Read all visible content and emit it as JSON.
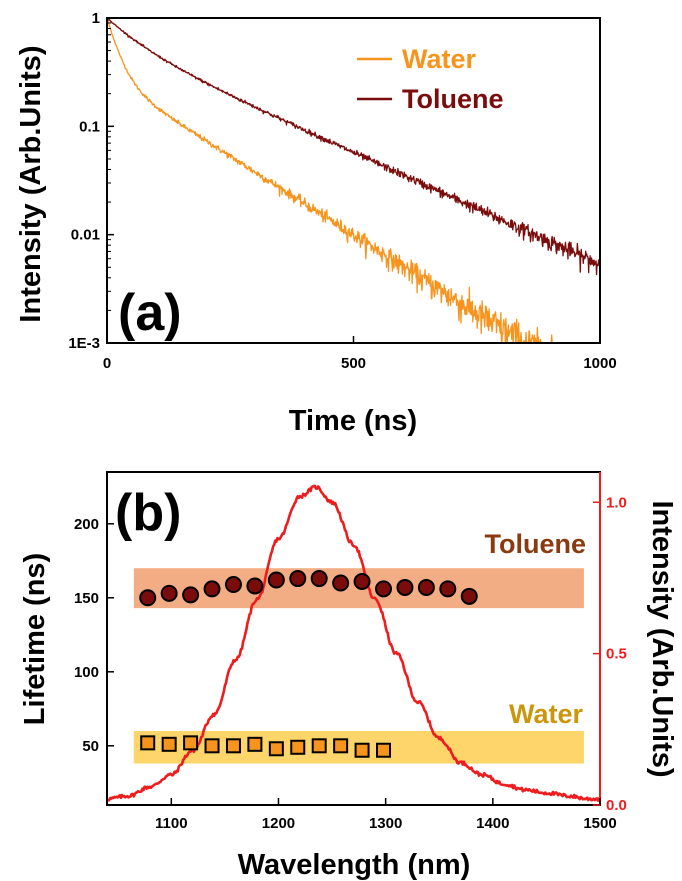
{
  "chart_data": [
    {
      "type": "line",
      "panel_label": "(a)",
      "xlabel": "Time (ns)",
      "ylabel": "Intensity (Arb.Units)",
      "xlim": [
        0,
        1000
      ],
      "ylim": [
        0.001,
        1
      ],
      "yscale": "log",
      "x_ticks": [
        0,
        500,
        1000
      ],
      "y_ticks": [
        {
          "value": 1,
          "label": "1"
        },
        {
          "value": 0.1,
          "label": "0.1"
        },
        {
          "value": 0.01,
          "label": "0.01"
        },
        {
          "value": 0.001,
          "label": "1E-3"
        }
      ],
      "legend_position": "top-right",
      "series": [
        {
          "name": "Water",
          "color": "#f7941d",
          "decay_model": {
            "a1": 0.72,
            "tau1_ns": 22,
            "a2": 0.28,
            "tau2_ns": 150
          },
          "x": [
            0,
            25,
            50,
            100,
            150,
            200,
            300,
            400,
            500,
            600,
            700,
            800
          ],
          "y": [
            1,
            0.44,
            0.24,
            0.135,
            0.097,
            0.074,
            0.045,
            0.023,
            0.0125,
            0.0065,
            0.0033,
            0.0017
          ]
        },
        {
          "name": "Toluene",
          "color": "#7b0c0c",
          "decay_model": {
            "a1": 0.38,
            "tau1_ns": 60,
            "a2": 0.62,
            "tau2_ns": 210
          },
          "x": [
            0,
            50,
            100,
            200,
            300,
            400,
            500,
            600,
            700,
            800,
            900,
            1000
          ],
          "y": [
            1,
            0.67,
            0.47,
            0.26,
            0.16,
            0.1,
            0.06,
            0.035,
            0.021,
            0.013,
            0.008,
            0.005
          ]
        }
      ]
    },
    {
      "type": "scatter",
      "panel_label": "(b)",
      "xlabel": "Wavelength (nm)",
      "ylabel": "Lifetime (ns)",
      "y2label": "Intensity (Arb.Units)",
      "xlim": [
        1040,
        1500
      ],
      "ylim": [
        10,
        235
      ],
      "y2lim": [
        0,
        1.1
      ],
      "x_ticks": [
        1100,
        1200,
        1300,
        1400,
        1500
      ],
      "y_ticks": [
        50,
        100,
        150,
        200
      ],
      "y2_ticks": [
        {
          "value": 0.0,
          "label": "0.0"
        },
        {
          "value": 0.5,
          "label": "0.5"
        },
        {
          "value": 1.0,
          "label": "1.0"
        }
      ],
      "colors": {
        "y2_axis": "#ee1c1c",
        "spectrum": "#ee1c1c",
        "toluene_band": "#f3ad85",
        "toluene_marker": "#7b0c0c",
        "water_band": "#fdd56a",
        "water_marker": "#f7941d"
      },
      "bands": [
        {
          "label": "Toluene",
          "y_range": [
            143,
            170
          ],
          "x_range": [
            1065,
            1485
          ],
          "color": "#f3ad85",
          "label_color": "#8b3a0f"
        },
        {
          "label": "Water",
          "y_range": [
            38,
            60
          ],
          "x_range": [
            1065,
            1485
          ],
          "color": "#fdd56a",
          "label_color": "#c9960c"
        }
      ],
      "series": [
        {
          "name": "Toluene lifetime",
          "marker": "circle",
          "color": "#7b0c0c",
          "x": [
            1078,
            1098,
            1118,
            1138,
            1158,
            1178,
            1198,
            1218,
            1238,
            1258,
            1278,
            1298,
            1318,
            1338,
            1358,
            1378
          ],
          "y": [
            150,
            153,
            152,
            156,
            159,
            158,
            162,
            163,
            163,
            160,
            161,
            156,
            157,
            157,
            156,
            151
          ]
        },
        {
          "name": "Water lifetime",
          "marker": "square",
          "color": "#f7941d",
          "x": [
            1078,
            1098,
            1118,
            1138,
            1158,
            1178,
            1198,
            1218,
            1238,
            1258,
            1278,
            1298
          ],
          "y": [
            52,
            51,
            52,
            50,
            50,
            51,
            48,
            49,
            50,
            50,
            47,
            47
          ]
        },
        {
          "name": "Emission spectrum",
          "axis": "y2",
          "color": "#ee1c1c",
          "x": [
            1040,
            1060,
            1080,
            1100,
            1120,
            1140,
            1160,
            1180,
            1200,
            1220,
            1235,
            1250,
            1270,
            1290,
            1310,
            1330,
            1350,
            1370,
            1390,
            1410,
            1430,
            1450,
            1470,
            1490,
            1500
          ],
          "y": [
            0.02,
            0.03,
            0.06,
            0.1,
            0.18,
            0.3,
            0.48,
            0.68,
            0.88,
            1.02,
            1.05,
            1.0,
            0.86,
            0.68,
            0.5,
            0.34,
            0.22,
            0.14,
            0.1,
            0.07,
            0.05,
            0.04,
            0.03,
            0.02,
            0.02
          ]
        }
      ]
    }
  ]
}
